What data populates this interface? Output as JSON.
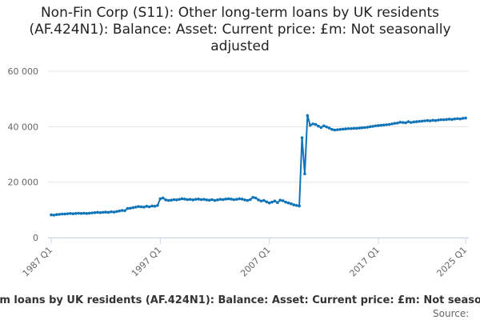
{
  "chart_data": {
    "type": "line",
    "title": "Non-Fin Corp (S11): Other long-term loans by UK residents (AF.424N1): Balance: Asset: Current price: £m: Not seasonally adjusted",
    "categories": [
      "1987 Q1",
      null,
      null,
      null,
      null,
      null,
      null,
      null,
      null,
      null,
      null,
      null,
      null,
      null,
      null,
      null,
      null,
      null,
      null,
      null,
      null,
      null,
      null,
      null,
      null,
      null,
      null,
      null,
      null,
      null,
      null,
      null,
      null,
      null,
      null,
      null,
      null,
      null,
      null,
      null,
      "1997 Q1",
      null,
      null,
      null,
      null,
      null,
      null,
      null,
      null,
      null,
      null,
      null,
      null,
      null,
      null,
      null,
      null,
      null,
      null,
      null,
      null,
      null,
      null,
      null,
      null,
      null,
      null,
      null,
      null,
      null,
      null,
      null,
      null,
      null,
      null,
      null,
      null,
      null,
      null,
      null,
      "2007 Q1",
      null,
      null,
      null,
      null,
      null,
      null,
      null,
      null,
      null,
      null,
      null,
      null,
      null,
      null,
      null,
      null,
      null,
      null,
      null,
      null,
      null,
      null,
      null,
      null,
      null,
      null,
      null,
      null,
      null,
      null,
      null,
      null,
      null,
      null,
      null,
      null,
      null,
      null,
      null,
      "2017 Q1",
      null,
      null,
      null,
      null,
      null,
      null,
      null,
      null,
      null,
      null,
      null,
      null,
      null,
      null,
      null,
      null,
      null,
      null,
      null,
      null,
      null,
      null,
      null,
      null,
      null,
      null,
      null,
      null,
      null,
      null,
      null,
      "2025 Q1"
    ],
    "series": [
      {
        "name": "Other long-term loans by UK residents (AF.424N1): Balance: Asset: Current price: £m: Not seasonally adjusted",
        "color": "#0f74b8",
        "values": [
          8200,
          8100,
          8300,
          8400,
          8500,
          8500,
          8600,
          8700,
          8600,
          8700,
          8800,
          8700,
          8800,
          8700,
          8800,
          8900,
          9000,
          9100,
          9000,
          9100,
          9200,
          9100,
          9300,
          9200,
          9400,
          9600,
          9800,
          9700,
          10500,
          10600,
          10800,
          11000,
          11200,
          11100,
          11000,
          11300,
          11100,
          11400,
          11300,
          11600,
          14000,
          14300,
          13600,
          13400,
          13500,
          13700,
          13600,
          13800,
          14000,
          13900,
          13700,
          13800,
          13600,
          13800,
          13900,
          13700,
          13800,
          13600,
          13500,
          13700,
          13400,
          13600,
          13800,
          13700,
          13900,
          14000,
          13900,
          13700,
          13800,
          14000,
          13900,
          13600,
          13400,
          13700,
          14500,
          14300,
          13600,
          13200,
          13400,
          12900,
          12500,
          12800,
          13200,
          12600,
          13500,
          13300,
          12800,
          12500,
          12200,
          11800,
          11600,
          11400,
          36000,
          23000,
          44000,
          40500,
          41000,
          40800,
          40200,
          39700,
          40300,
          39900,
          39500,
          39000,
          38800,
          38900,
          39000,
          39100,
          39200,
          39300,
          39300,
          39400,
          39400,
          39500,
          39600,
          39700,
          39800,
          40000,
          40100,
          40300,
          40400,
          40500,
          40600,
          40700,
          40800,
          41000,
          41200,
          41300,
          41600,
          41500,
          41400,
          41800,
          41500,
          41700,
          41800,
          41900,
          42000,
          42100,
          42200,
          42100,
          42300,
          42200,
          42400,
          42500,
          42500,
          42600,
          42700,
          42600,
          42800,
          42900,
          42800,
          43000,
          43100
        ]
      }
    ],
    "ylim": [
      0,
      60000
    ],
    "yticks": [
      0,
      {
        "value": 20000,
        "label": "20 000"
      },
      {
        "value": 40000,
        "label": "40 000"
      },
      {
        "value": 60000,
        "label": "60 000"
      }
    ],
    "grid": true,
    "source": "Source:"
  }
}
